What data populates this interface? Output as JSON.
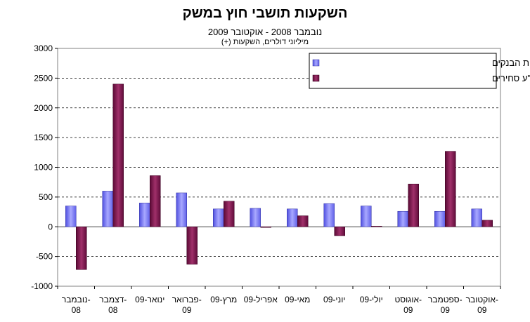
{
  "chart_data": {
    "type": "bar",
    "title": "השקעות תושבי חוץ במשק",
    "subtitle": "נובמבר 2008 - אוקטובר 2009",
    "units": "מיליוני דולרים, השקעות (+)",
    "categories": [
      [
        "נובמבר-",
        "08"
      ],
      [
        "דצמבר-",
        "08"
      ],
      [
        "ינואר-09"
      ],
      [
        "פברואר-",
        "09"
      ],
      [
        "מרץ-09"
      ],
      [
        "אפריל-09"
      ],
      [
        "מאי-09"
      ],
      [
        "יוני-09"
      ],
      [
        "יולי-09"
      ],
      [
        "אוגוסט-",
        "09"
      ],
      [
        "ספטמבר-",
        "09"
      ],
      [
        "אוקטובר-",
        "09"
      ]
    ],
    "series": [
      {
        "name": "השקעות ישירות בישראל באמצעות הבנקים",
        "values": [
          350,
          600,
          400,
          570,
          300,
          310,
          300,
          390,
          350,
          260,
          260,
          300
        ]
      },
      {
        "name": "השקעות פיננסיות בני\"ע סחירים",
        "values": [
          -720,
          2400,
          860,
          -630,
          430,
          -10,
          185,
          -150,
          10,
          720,
          1270,
          110
        ]
      }
    ],
    "ylim": [
      -1000,
      3000
    ],
    "yticks": [
      -1000,
      -500,
      0,
      500,
      1000,
      1500,
      2000,
      2500,
      3000
    ],
    "grid": true,
    "legend_position": "top-right",
    "colors": {
      "series1": "#8080ff",
      "series2": "#7a1a4a"
    }
  }
}
